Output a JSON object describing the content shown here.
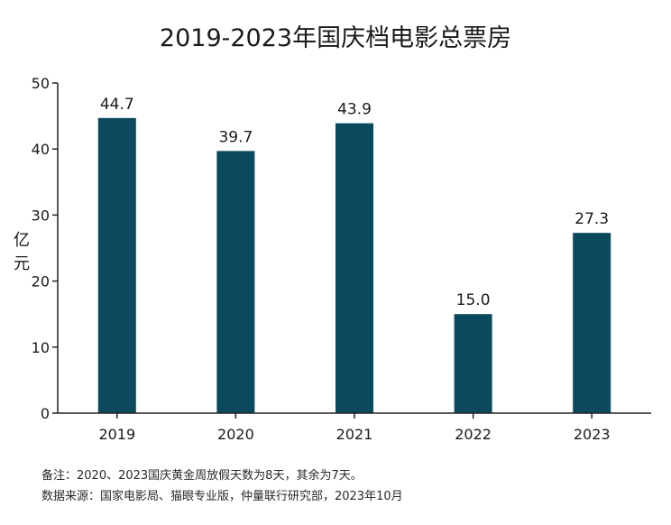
{
  "chart_data": {
    "type": "bar",
    "title": "2019-2023年国庆档电影总票房",
    "ylabel": "亿元",
    "xlabel": "",
    "categories": [
      "2019",
      "2020",
      "2021",
      "2022",
      "2023"
    ],
    "values": [
      44.7,
      39.7,
      43.9,
      15.0,
      27.3
    ],
    "value_labels": [
      "44.7",
      "39.7",
      "43.9",
      "15.0",
      "27.3"
    ],
    "ylim": [
      0,
      50
    ],
    "yticks": [
      "0",
      "10",
      "20",
      "30",
      "40",
      "50"
    ],
    "grid": false,
    "legend": "none",
    "bar_color": "#0b4a5e"
  },
  "notes": {
    "line1": "备注：2020、2023国庆黄金周放假天数为8天，其余为7天。",
    "line2": "数据来源：国家电影局、猫眼专业版，仲量联行研究部，2023年10月"
  }
}
